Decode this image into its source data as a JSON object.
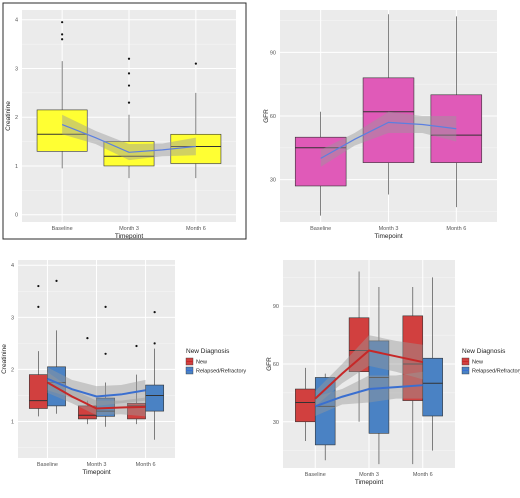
{
  "chart_data": [
    {
      "type": "box",
      "xlabel": "Timepoint",
      "ylabel": "Creatinine",
      "ylim": [
        -0.15,
        4.2
      ],
      "yticks": [
        0,
        1,
        2,
        3,
        4
      ],
      "categories": [
        "Baseline",
        "Month 3",
        "Month 6"
      ],
      "box_color": "#ffff33",
      "trend_color": "#5b7fe0",
      "boxes": [
        {
          "min": 0.95,
          "q1": 1.3,
          "median": 1.65,
          "q3": 2.15,
          "max": 3.15,
          "outliers": [
            3.6,
            3.7,
            3.95
          ]
        },
        {
          "min": 0.75,
          "q1": 1.0,
          "median": 1.2,
          "q3": 1.5,
          "max": 2.05,
          "outliers": [
            2.3,
            2.65,
            2.9,
            3.2
          ]
        },
        {
          "min": 0.75,
          "q1": 1.05,
          "median": 1.4,
          "q3": 1.65,
          "max": 2.5,
          "outliers": [
            3.1
          ]
        }
      ],
      "trend": [
        {
          "x": 1.0,
          "y": 1.85,
          "lo": 1.65,
          "hi": 2.05
        },
        {
          "x": 1.5,
          "y": 1.58,
          "lo": 1.45,
          "hi": 1.72
        },
        {
          "x": 2.0,
          "y": 1.28,
          "lo": 1.12,
          "hi": 1.45
        },
        {
          "x": 2.5,
          "y": 1.33,
          "lo": 1.2,
          "hi": 1.46
        },
        {
          "x": 3.0,
          "y": 1.4,
          "lo": 1.22,
          "hi": 1.58
        }
      ]
    },
    {
      "type": "box",
      "xlabel": "Timepoint",
      "ylabel": "GFR",
      "ylim": [
        10,
        110
      ],
      "yticks": [
        30,
        60,
        90
      ],
      "categories": [
        "Baseline",
        "Month 3",
        "Month 6"
      ],
      "box_color": "#e05ab8",
      "trend_color": "#5b7fe0",
      "boxes": [
        {
          "min": 13,
          "q1": 27,
          "median": 45,
          "q3": 50,
          "max": 62,
          "outliers": []
        },
        {
          "min": 23,
          "q1": 38,
          "median": 62,
          "q3": 78,
          "max": 108,
          "outliers": []
        },
        {
          "min": 17,
          "q1": 38,
          "median": 51,
          "q3": 70,
          "max": 107,
          "outliers": []
        }
      ],
      "trend": [
        {
          "x": 1.0,
          "y": 40,
          "lo": 36,
          "hi": 44
        },
        {
          "x": 1.5,
          "y": 49,
          "lo": 46,
          "hi": 52
        },
        {
          "x": 2.0,
          "y": 57,
          "lo": 52,
          "hi": 62
        },
        {
          "x": 2.5,
          "y": 56,
          "lo": 52,
          "hi": 60
        },
        {
          "x": 3.0,
          "y": 54,
          "lo": 48,
          "hi": 60
        }
      ]
    },
    {
      "type": "box",
      "xlabel": "Timepoint",
      "ylabel": "Creatinine",
      "ylim": [
        0.3,
        4.1
      ],
      "yticks": [
        1,
        2,
        3,
        4
      ],
      "categories": [
        "Baseline",
        "Month 3",
        "Month 6"
      ],
      "legend": {
        "title": "New Diagnosis",
        "position": "right"
      },
      "series": [
        {
          "name": "New",
          "color": "#d1403f",
          "trend_color": "#c62828",
          "boxes": [
            {
              "min": 1.1,
              "q1": 1.25,
              "median": 1.4,
              "q3": 1.9,
              "max": 2.35,
              "outliers": [
                3.2,
                3.6
              ]
            },
            {
              "min": 0.95,
              "q1": 1.05,
              "median": 1.12,
              "q3": 1.3,
              "max": 1.4,
              "outliers": [
                2.6
              ]
            },
            {
              "min": 0.95,
              "q1": 1.05,
              "median": 1.3,
              "q3": 1.35,
              "max": 1.9,
              "outliers": [
                2.45
              ]
            }
          ],
          "trend": [
            {
              "x": 1.0,
              "y": 1.75,
              "lo": 1.55,
              "hi": 1.95
            },
            {
              "x": 1.5,
              "y": 1.48,
              "lo": 1.35,
              "hi": 1.62
            },
            {
              "x": 2.0,
              "y": 1.25,
              "lo": 1.12,
              "hi": 1.4
            },
            {
              "x": 2.5,
              "y": 1.27,
              "lo": 1.14,
              "hi": 1.4
            },
            {
              "x": 3.0,
              "y": 1.28,
              "lo": 1.1,
              "hi": 1.46
            }
          ]
        },
        {
          "name": "Relapsed/Refractory",
          "color": "#4a82c4",
          "trend_color": "#3a6fd0",
          "boxes": [
            {
              "min": 1.15,
              "q1": 1.3,
              "median": 1.75,
              "q3": 2.05,
              "max": 2.75,
              "outliers": [
                3.7
              ]
            },
            {
              "min": 0.9,
              "q1": 1.1,
              "median": 1.2,
              "q3": 1.45,
              "max": 1.75,
              "outliers": [
                2.3,
                3.2
              ]
            },
            {
              "min": 0.65,
              "q1": 1.2,
              "median": 1.5,
              "q3": 1.7,
              "max": 2.4,
              "outliers": [
                2.5,
                3.1
              ]
            }
          ],
          "trend": [
            {
              "x": 1.0,
              "y": 1.82,
              "lo": 1.6,
              "hi": 2.04
            },
            {
              "x": 1.5,
              "y": 1.62,
              "lo": 1.45,
              "hi": 1.8
            },
            {
              "x": 2.0,
              "y": 1.48,
              "lo": 1.3,
              "hi": 1.68
            },
            {
              "x": 2.5,
              "y": 1.52,
              "lo": 1.35,
              "hi": 1.7
            },
            {
              "x": 3.0,
              "y": 1.6,
              "lo": 1.4,
              "hi": 1.8
            }
          ]
        }
      ]
    },
    {
      "type": "box",
      "xlabel": "Timepoint",
      "ylabel": "GFR",
      "ylim": [
        6,
        114
      ],
      "yticks": [
        30,
        60,
        90
      ],
      "categories": [
        "Baseline",
        "Month 3",
        "Month 6"
      ],
      "legend": {
        "title": "New Diagnosis",
        "position": "right"
      },
      "series": [
        {
          "name": "New",
          "color": "#d1403f",
          "trend_color": "#c62828",
          "boxes": [
            {
              "min": 20,
              "q1": 30,
              "median": 40,
              "q3": 47,
              "max": 58,
              "outliers": []
            },
            {
              "min": 30,
              "q1": 56,
              "median": 67,
              "q3": 84,
              "max": 108,
              "outliers": []
            },
            {
              "min": 8,
              "q1": 41,
              "median": 60,
              "q3": 85,
              "max": 100,
              "outliers": []
            }
          ],
          "trend": [
            {
              "x": 1.0,
              "y": 42,
              "lo": 38,
              "hi": 46
            },
            {
              "x": 1.5,
              "y": 55,
              "lo": 50,
              "hi": 60
            },
            {
              "x": 2.0,
              "y": 67,
              "lo": 59,
              "hi": 75
            },
            {
              "x": 2.5,
              "y": 64,
              "lo": 56,
              "hi": 72
            },
            {
              "x": 3.0,
              "y": 61,
              "lo": 52,
              "hi": 70
            }
          ]
        },
        {
          "name": "Relapsed/Refractory",
          "color": "#4a82c4",
          "trend_color": "#3a6fd0",
          "boxes": [
            {
              "min": 10,
              "q1": 18,
              "median": 38,
              "q3": 53,
              "max": 55,
              "outliers": []
            },
            {
              "min": 8,
              "q1": 24,
              "median": 53,
              "q3": 72,
              "max": 100,
              "outliers": []
            },
            {
              "min": 15,
              "q1": 33,
              "median": 50,
              "q3": 63,
              "max": 105,
              "outliers": []
            }
          ],
          "trend": [
            {
              "x": 1.0,
              "y": 38,
              "lo": 33,
              "hi": 43
            },
            {
              "x": 1.5,
              "y": 43,
              "lo": 39,
              "hi": 47
            },
            {
              "x": 2.0,
              "y": 47,
              "lo": 40,
              "hi": 54
            },
            {
              "x": 2.5,
              "y": 48,
              "lo": 42,
              "hi": 54
            },
            {
              "x": 3.0,
              "y": 49,
              "lo": 42,
              "hi": 56
            }
          ]
        }
      ]
    }
  ]
}
